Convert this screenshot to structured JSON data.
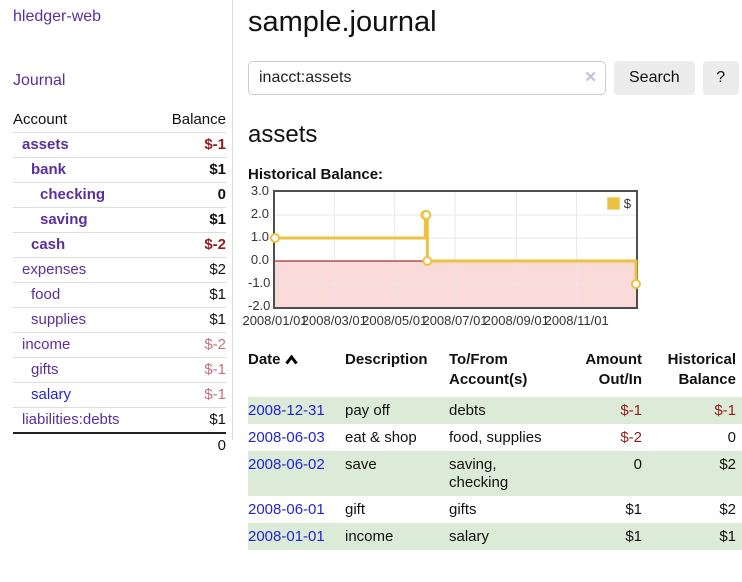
{
  "app": {
    "title": "hledger-web",
    "nav_journal": "Journal"
  },
  "colors": {
    "link_purple": "#5b2f9d",
    "link_blue": "#2323d3",
    "negative_red": "#941c1c",
    "negative_soft_red": "#c2737a",
    "row_stripe_green": "#dcebd7"
  },
  "sidebar": {
    "header": {
      "account": "Account",
      "balance": "Balance"
    },
    "accounts": [
      {
        "name": "assets",
        "depth": 1,
        "bold": true,
        "link": "purple",
        "balance": "$-1",
        "balance_class": "neg"
      },
      {
        "name": "bank",
        "depth": 2,
        "bold": true,
        "link": "purple",
        "balance": "$1",
        "balance_class": "pos"
      },
      {
        "name": "checking",
        "depth": 3,
        "bold": true,
        "link": "purple",
        "balance": "0",
        "balance_class": "pos"
      },
      {
        "name": "saving",
        "depth": 3,
        "bold": true,
        "link": "purple",
        "balance": "$1",
        "balance_class": "pos"
      },
      {
        "name": "cash",
        "depth": 2,
        "bold": true,
        "link": "purple",
        "balance": "$-2",
        "balance_class": "neg"
      },
      {
        "name": "expenses",
        "depth": 1,
        "bold": false,
        "link": "purple",
        "balance": "$2",
        "balance_class": "pos"
      },
      {
        "name": "food",
        "depth": 2,
        "bold": false,
        "link": "purple",
        "balance": "$1",
        "balance_class": "pos"
      },
      {
        "name": "supplies",
        "depth": 2,
        "bold": false,
        "link": "purple",
        "balance": "$1",
        "balance_class": "pos"
      },
      {
        "name": "income",
        "depth": 1,
        "bold": false,
        "link": "purple",
        "balance": "$-2",
        "balance_class": "neg-soft"
      },
      {
        "name": "gifts",
        "depth": 2,
        "bold": false,
        "link": "purple",
        "balance": "$-1",
        "balance_class": "neg-soft"
      },
      {
        "name": "salary",
        "depth": 2,
        "bold": false,
        "link": "blue",
        "balance": "$-1",
        "balance_class": "neg-soft"
      },
      {
        "name": "liabilities:debts",
        "depth": 1,
        "bold": false,
        "link": "purple",
        "balance": "$1",
        "balance_class": "pos"
      }
    ],
    "total": "0"
  },
  "header": {
    "title": "sample.journal"
  },
  "search": {
    "value": "inacct:assets",
    "clear_icon": "✕",
    "button_label": "Search",
    "help_label": "?"
  },
  "account_page": {
    "title": "assets",
    "chart_label": "Historical Balance:"
  },
  "chart_data": {
    "type": "line",
    "style": "step",
    "title": "Historical Balance",
    "series": [
      {
        "name": "$",
        "color": "#edc240",
        "points": [
          [
            "2008-01-01",
            1
          ],
          [
            "2008-06-01",
            2
          ],
          [
            "2008-06-02",
            2
          ],
          [
            "2008-06-03",
            0
          ],
          [
            "2008-12-31",
            -1
          ]
        ]
      }
    ],
    "xlim": [
      "2008-01-01",
      "2008-12-31"
    ],
    "ylim": [
      -2,
      3
    ],
    "y_ticks": [
      "3.0",
      "2.0",
      "1.0",
      "0.0",
      "-1.0",
      "-2.0"
    ],
    "x_ticks": [
      "2008/01/01",
      "2008/03/01",
      "2008/05/01",
      "2008/07/01",
      "2008/09/01",
      "2008/11/01"
    ],
    "grid_y": [
      2,
      1,
      -1
    ],
    "grid": true,
    "legend": {
      "label": "$",
      "position": "top-right"
    },
    "negative_region_color": "#fbdada",
    "zero_line_color": "#8b0000",
    "grid_color": "#e7e7e7"
  },
  "register": {
    "columns": {
      "date": "Date",
      "description": "Description",
      "accounts": "To/From Account(s)",
      "amount": "Amount Out/In",
      "balance": "Historical Balance"
    },
    "sort": "date-ascending",
    "rows": [
      {
        "date": "2008-12-31",
        "description": "pay off",
        "accounts": "debts",
        "amount": "$-1",
        "amount_class": "neg",
        "balance": "$-1",
        "balance_class": "neg",
        "striped": true
      },
      {
        "date": "2008-06-03",
        "description": "eat & shop",
        "accounts": "food, supplies",
        "amount": "$-2",
        "amount_class": "neg",
        "balance": "0",
        "balance_class": "pos",
        "striped": false
      },
      {
        "date": "2008-06-02",
        "description": "save",
        "accounts": "saving, checking",
        "amount": "0",
        "amount_class": "pos",
        "balance": "$2",
        "balance_class": "pos",
        "striped": true
      },
      {
        "date": "2008-06-01",
        "description": "gift",
        "accounts": "gifts",
        "amount": "$1",
        "amount_class": "pos",
        "balance": "$2",
        "balance_class": "pos",
        "striped": false
      },
      {
        "date": "2008-01-01",
        "description": "income",
        "accounts": "salary",
        "amount": "$1",
        "amount_class": "pos",
        "balance": "$1",
        "balance_class": "pos",
        "striped": true
      }
    ]
  }
}
